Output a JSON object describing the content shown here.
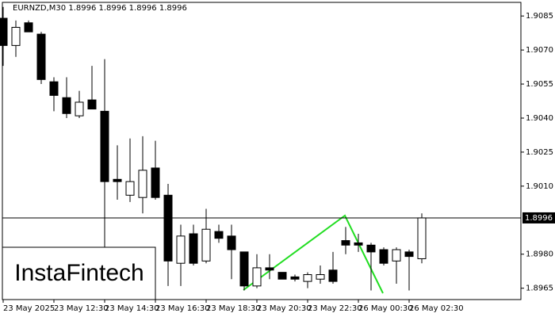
{
  "chart_data": {
    "type": "candlestick",
    "title": "EURNZD,M30  1.8996 1.8996 1.8996 1.8996",
    "watermark": "InstaFintech",
    "categories": [
      "23 May 2025",
      null,
      null,
      null,
      "23 May 12:30",
      null,
      null,
      null,
      "23 May 14:30",
      null,
      null,
      null,
      "23 May 16:30",
      null,
      null,
      null,
      "23 May 18:30",
      null,
      null,
      null,
      "23 May 20:30",
      null,
      null,
      null,
      "23 May 22:30",
      null,
      null,
      null,
      "26 May 00:30",
      null,
      null,
      null,
      "26 May 02:30",
      null
    ],
    "open": [
      1.9084,
      1.9072,
      1.9082,
      1.9077,
      1.9056,
      1.9049,
      1.9041,
      1.9048,
      1.9043,
      1.9013,
      1.9006,
      1.9005,
      1.9018,
      1.9006,
      1.8976,
      1.8989,
      1.8977,
      1.899,
      1.8988,
      1.8981,
      1.8966,
      1.8974,
      1.8972,
      1.897,
      1.8968,
      1.8969,
      1.8973,
      1.8986,
      1.8985,
      1.8984,
      1.8982,
      1.8977,
      1.8981,
      1.8978
    ],
    "high": [
      1.9089,
      1.9083,
      1.9083,
      1.9078,
      1.9058,
      1.9058,
      1.9052,
      1.9063,
      1.9066,
      1.9028,
      1.9031,
      1.9032,
      1.903,
      1.9011,
      1.8993,
      1.8993,
      1.9,
      1.8993,
      1.8993,
      1.8981,
      1.898,
      1.898,
      1.8972,
      1.8971,
      1.8972,
      1.8975,
      1.8981,
      1.8992,
      1.8989,
      1.8985,
      1.8983,
      1.8983,
      1.8982,
      1.8998
    ],
    "low": [
      1.9063,
      1.9067,
      1.9078,
      1.9055,
      1.9043,
      1.904,
      1.904,
      1.9044,
      1.8979,
      1.9004,
      1.9003,
      1.8998,
      1.9004,
      1.8966,
      1.8966,
      1.8975,
      1.8976,
      1.8985,
      1.8969,
      1.8964,
      1.8965,
      1.8969,
      1.8969,
      1.8968,
      1.8965,
      1.8967,
      1.8967,
      1.898,
      1.8981,
      1.8964,
      1.8975,
      1.8967,
      1.8964,
      1.8976
    ],
    "close": [
      1.9072,
      1.908,
      1.9078,
      1.9057,
      1.905,
      1.9042,
      1.9047,
      1.9044,
      1.9012,
      1.9012,
      1.9012,
      1.9017,
      1.9005,
      1.8977,
      1.8988,
      1.8976,
      1.8991,
      1.8987,
      1.8982,
      1.8966,
      1.8974,
      1.8973,
      1.8969,
      1.8969,
      1.8971,
      1.8971,
      1.8968,
      1.8984,
      1.8984,
      1.8981,
      1.8976,
      1.8982,
      1.8979,
      1.8996
    ],
    "up_color": "#ffffff",
    "down_color": "#000000",
    "wick_color": "#000000",
    "last_price": 1.8996,
    "ylim": [
      1.896,
      1.9091
    ],
    "yticks": [
      1.9085,
      {
        "value": 1.907,
        "label": "1.9070"
      },
      1.9055,
      {
        "value": 1.904,
        "label": "1.9040"
      },
      1.9025,
      {
        "value": 1.901,
        "label": "1.9010"
      },
      {
        "value": 1.898,
        "label": "1.8980"
      },
      1.8965
    ]
  }
}
